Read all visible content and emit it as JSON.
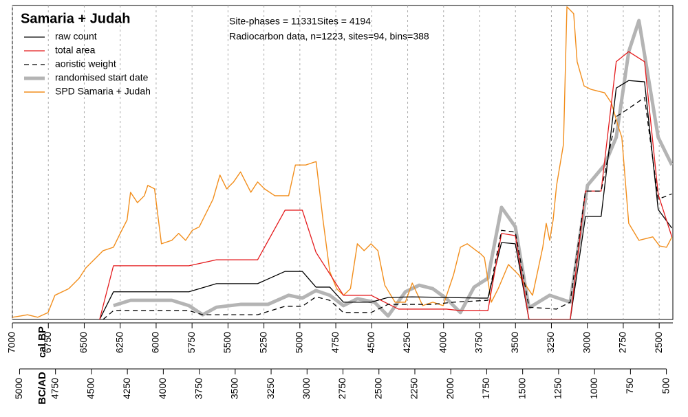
{
  "chart_data": {
    "type": "line",
    "title": "Samaria + Judah",
    "annotations": [
      {
        "text": "Site-phases = 11331Sites = 4194",
        "color": "#000000"
      },
      {
        "text": "Radiocarbon data, n=1223, sites=94, bins=388",
        "color": "#c8561c"
      }
    ],
    "xlabel": "cal BP",
    "x2label": "BC/AD",
    "xlim": [
      7000,
      2405
    ],
    "xticks": [
      7000,
      6750,
      6500,
      6250,
      6000,
      5750,
      5500,
      5250,
      5000,
      4750,
      4500,
      4250,
      4000,
      3750,
      3500,
      3250,
      3000,
      2750,
      2500
    ],
    "x2lim": [
      5050,
      455
    ],
    "x2ticks": [
      5000,
      4750,
      4500,
      4250,
      4000,
      3750,
      3500,
      3250,
      3000,
      2750,
      2500,
      2250,
      2000,
      1750,
      1500,
      1250,
      1000,
      750,
      500
    ],
    "ylim": [
      0,
      100
    ],
    "grid": true,
    "legend": "top-left",
    "series": [
      {
        "name": "raw count",
        "color": "#000000",
        "linestyle": "solid",
        "linewidth": 1.3,
        "x": [
          6393,
          6297,
          5772,
          5580,
          5294,
          5103,
          4983,
          4888,
          4792,
          4697,
          4505,
          4386,
          4219,
          3741,
          3692,
          3597,
          3501,
          3406,
          3119,
          3013,
          2904,
          2799,
          2712,
          2602,
          2507,
          2412
        ],
        "values": [
          0,
          8.8,
          8.8,
          11.4,
          11.4,
          15.3,
          15.3,
          10.3,
          10.3,
          5.5,
          5.5,
          7.0,
          7.2,
          6.8,
          6.8,
          24.5,
          24.1,
          0,
          0,
          32.8,
          32.8,
          73.7,
          76.1,
          75.7,
          35,
          29.1
        ]
      },
      {
        "name": "total area",
        "color": "#e41a1c",
        "linestyle": "solid",
        "linewidth": 1.3,
        "x": [
          6393,
          6297,
          5772,
          5580,
          5294,
          5103,
          4983,
          4888,
          4697,
          4505,
          4314,
          3979,
          3883,
          3692,
          3597,
          3501,
          3406,
          3119,
          3013,
          2904,
          2799,
          2712,
          2602,
          2507,
          2412
        ],
        "values": [
          0,
          17.1,
          17.1,
          19.0,
          19.0,
          34.8,
          34.8,
          21.4,
          7.7,
          7.7,
          3.3,
          3.3,
          2.8,
          2.8,
          27.4,
          26.7,
          0,
          0,
          40.9,
          40.9,
          82.1,
          85.3,
          82.1,
          39.8,
          26.3
        ]
      },
      {
        "name": "aoristic weight",
        "color": "#000000",
        "linestyle": "dashed",
        "linewidth": 1.3,
        "x": [
          6369,
          6297,
          5772,
          5676,
          5294,
          5103,
          4983,
          4888,
          4792,
          4697,
          4505,
          4386,
          4075,
          3931,
          3692,
          3597,
          3501,
          3406,
          3214,
          3119,
          3013,
          2904,
          2799,
          2712,
          2602,
          2507,
          2412
        ],
        "values": [
          0,
          2.8,
          2.8,
          1.5,
          1.5,
          4.2,
          4.2,
          7.2,
          6.1,
          2.2,
          2.2,
          4.8,
          4.8,
          5.5,
          6.1,
          28.4,
          27.8,
          3.9,
          3.3,
          5.5,
          40.9,
          40.9,
          64.6,
          67.2,
          70.7,
          38.3,
          40.0
        ]
      },
      {
        "name": "randomised start date",
        "color": "#b4b4b4",
        "linestyle": "solid",
        "linewidth": 5,
        "x": [
          6297,
          6178,
          5891,
          5772,
          5676,
          5580,
          5413,
          5222,
          5078,
          4983,
          4888,
          4792,
          4697,
          4600,
          4481,
          4386,
          4266,
          4170,
          4075,
          3979,
          3883,
          3788,
          3692,
          3597,
          3501,
          3406,
          3262,
          3119,
          2999,
          2880,
          2799,
          2712,
          2641,
          2507,
          2412
        ],
        "values": [
          4.4,
          6.1,
          6.1,
          4.4,
          1.5,
          3.9,
          4.8,
          4.8,
          7.7,
          6.8,
          9.2,
          7.7,
          4.4,
          6.6,
          5.5,
          1.1,
          8.8,
          10.9,
          9.8,
          6.6,
          2.2,
          10.3,
          13.1,
          35.7,
          29.5,
          3.7,
          7.7,
          5.5,
          42.7,
          49.2,
          58.0,
          85.3,
          95.2,
          58.0,
          49.2
        ]
      },
      {
        "name": "SPD Samaria + Judah",
        "color": "#f28e1c",
        "linestyle": "solid",
        "linewidth": 1.4,
        "x": [
          7000,
          6943,
          6895,
          6823,
          6752,
          6704,
          6608,
          6536,
          6489,
          6417,
          6369,
          6297,
          6250,
          6202,
          6178,
          6130,
          6082,
          6058,
          6011,
          5963,
          5891,
          5843,
          5795,
          5748,
          5700,
          5652,
          5604,
          5556,
          5509,
          5461,
          5413,
          5341,
          5294,
          5246,
          5174,
          5078,
          5031,
          4959,
          4887,
          4839,
          4792,
          4744,
          4696,
          4648,
          4600,
          4553,
          4505,
          4457,
          4409,
          4338,
          4266,
          4218,
          4146,
          4075,
          4003,
          3931,
          3883,
          3836,
          3740,
          3716,
          3668,
          3620,
          3549,
          3477,
          3429,
          3381,
          3310,
          3286,
          3262,
          3238,
          3214,
          3166,
          3142,
          3095,
          3071,
          3023,
          2975,
          2880,
          2832,
          2784,
          2760,
          2712,
          2641,
          2545,
          2497,
          2449,
          2411
        ],
        "values": [
          0.7,
          1.1,
          1.5,
          0.7,
          2.2,
          7.7,
          9.8,
          13.1,
          16.4,
          19.7,
          21.9,
          23.0,
          27.4,
          31.7,
          40.5,
          37.2,
          39.4,
          42.7,
          41.6,
          24.1,
          25.2,
          27.4,
          25.2,
          28.4,
          29.5,
          33.9,
          38.3,
          46.0,
          41.6,
          43.8,
          47.0,
          40.5,
          43.8,
          41.6,
          39.4,
          39.4,
          49.2,
          49.2,
          50.3,
          31.7,
          15.3,
          9.8,
          7.7,
          9.8,
          24.1,
          21.9,
          24.1,
          21.9,
          10.9,
          5.5,
          5.5,
          11.6,
          4.4,
          5.5,
          4.4,
          14.2,
          23.0,
          24.1,
          20.8,
          19.7,
          5.5,
          9.8,
          17.5,
          14.2,
          10.9,
          7.7,
          23.0,
          30.6,
          25.2,
          31.7,
          42.7,
          55.8,
          99.6,
          97.4,
          82.1,
          74.4,
          73.3,
          72.2,
          68.9,
          61.3,
          58.0,
          30.6,
          25.2,
          26.3,
          23.4,
          23.0,
          26.3
        ]
      }
    ]
  }
}
